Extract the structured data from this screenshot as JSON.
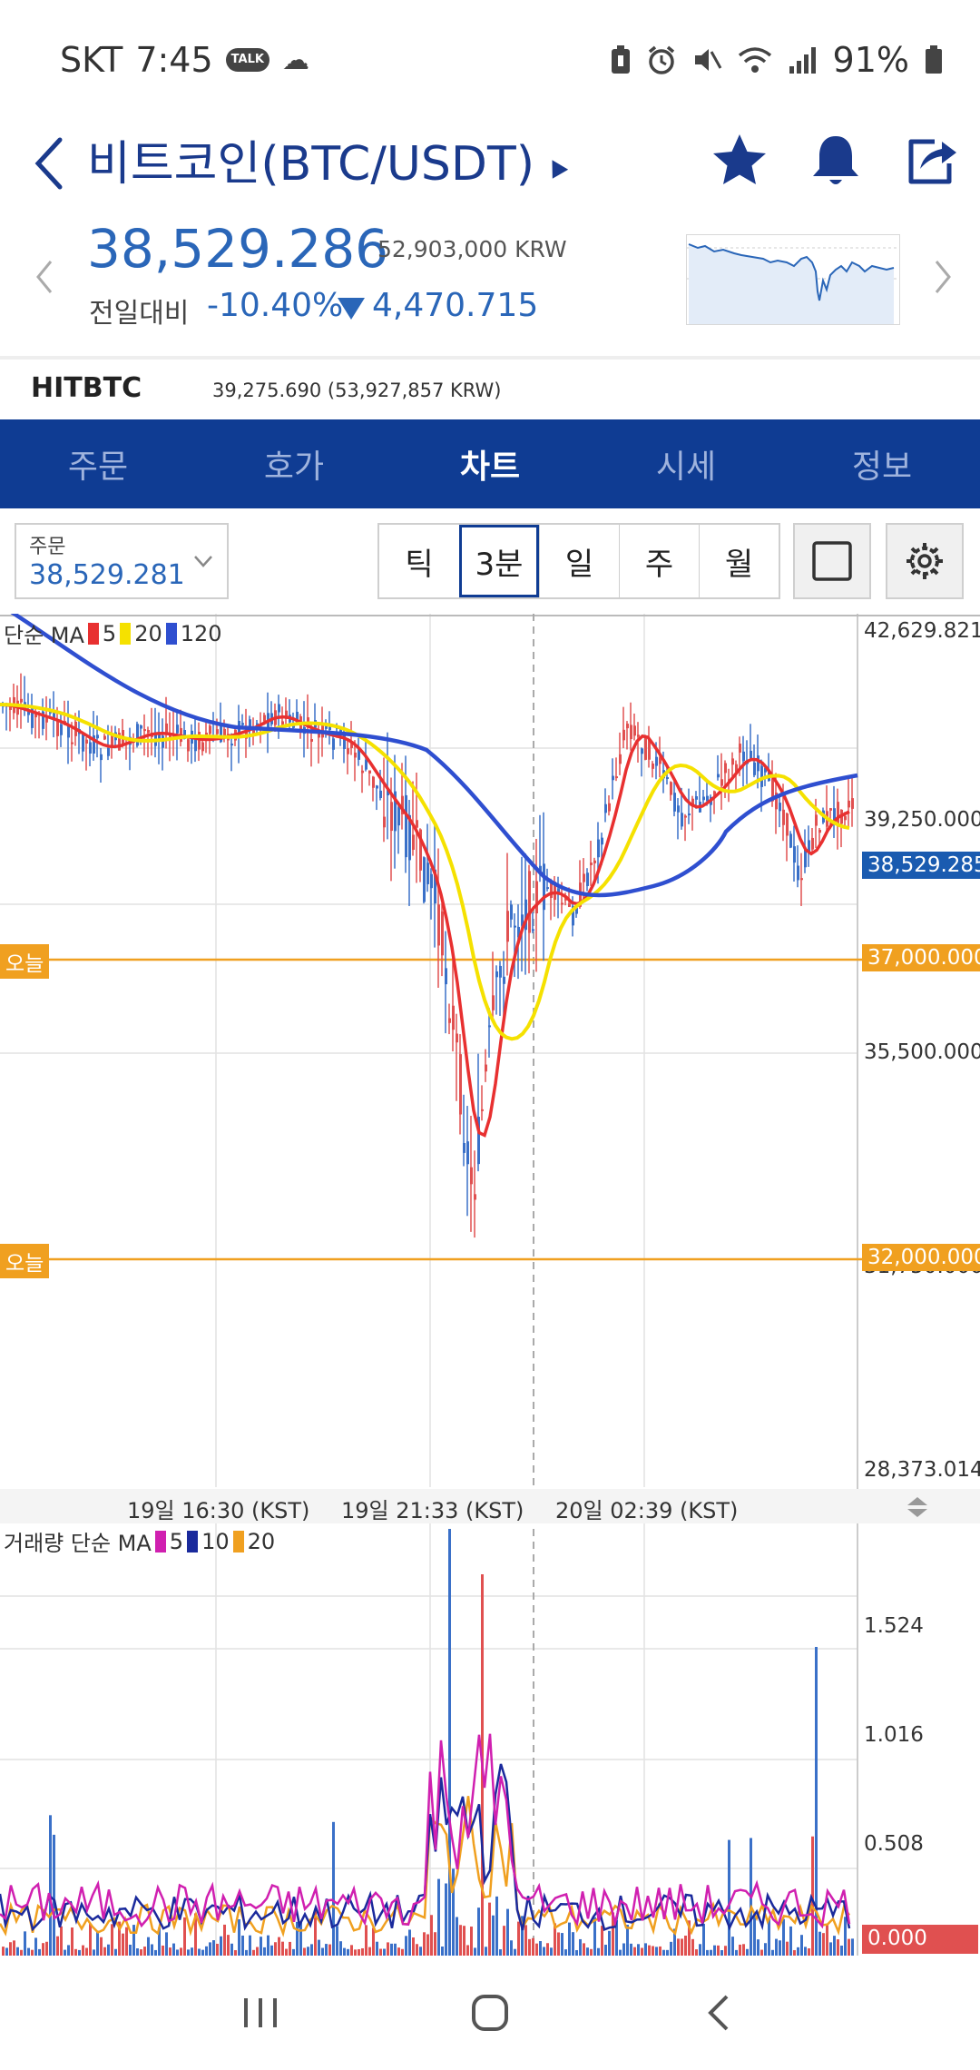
{
  "status_bar": {
    "carrier": "SKT",
    "time": "7:45",
    "talk_badge": "TALK",
    "battery": "91%",
    "icons": [
      "talk-icon",
      "cloud-icon",
      "battery-saver-icon",
      "alarm-icon",
      "mute-icon",
      "wifi-icon",
      "signal-icon",
      "battery-icon"
    ]
  },
  "header": {
    "title": "비트코인(BTC/USDT)",
    "icons": [
      "back-icon",
      "star-icon",
      "bell-icon",
      "share-icon"
    ],
    "accent": "#1a3a8c"
  },
  "price": {
    "current": "38,529.286",
    "krw": "52,903,000 KRW",
    "change_label": "전일대비",
    "change_pct": "-10.40%",
    "change_value": "4,470.715",
    "color_down": "#2a66b8"
  },
  "exchange": {
    "name": "HITBTC",
    "value": "39,275.690 (53,927,857 KRW)"
  },
  "tabs": [
    {
      "label": "주문",
      "active": false
    },
    {
      "label": "호가",
      "active": false
    },
    {
      "label": "차트",
      "active": true
    },
    {
      "label": "시세",
      "active": false
    },
    {
      "label": "정보",
      "active": false
    }
  ],
  "toolbar": {
    "order_label": "주문",
    "order_value": "38,529.281",
    "periods": [
      {
        "label": "틱",
        "active": false
      },
      {
        "label": "3분",
        "active": true
      },
      {
        "label": "일",
        "active": false
      },
      {
        "label": "주",
        "active": false
      },
      {
        "label": "월",
        "active": false
      }
    ]
  },
  "chart": {
    "ma_legend": {
      "label": "단순 MA",
      "items": [
        {
          "text": "5",
          "color": "#e83030"
        },
        {
          "text": "20",
          "color": "#f5e100"
        },
        {
          "text": "120",
          "color": "#2f4fd0"
        }
      ]
    },
    "y_labels": [
      "42,629.821",
      "39,250.000",
      "35,500.000",
      "31,750.000",
      "28,373.014"
    ],
    "current_tag": "38,529.285",
    "today_tags": [
      {
        "label": "오늘",
        "price": "37,000.000"
      },
      {
        "label": "오늘",
        "price": "32,000.000"
      }
    ],
    "time_labels": [
      "19일 16:30 (KST)",
      "19일 21:33 (KST)",
      "20일 02:39 (KST)"
    ],
    "volume_legend": {
      "label": "거래량 단순 MA",
      "items": [
        {
          "text": "5",
          "color": "#d020b0"
        },
        {
          "text": "10",
          "color": "#1a2a9c"
        },
        {
          "text": "20",
          "color": "#f0a020"
        }
      ]
    },
    "volume_labels": [
      "1.524",
      "1.016",
      "0.508",
      "0.000"
    ],
    "colors": {
      "up": "#e05050",
      "down": "#3a70c8",
      "grid": "#e2e2e2",
      "today": "#f0a020",
      "current": "#1a5bb0"
    }
  },
  "bottom_nav": {
    "icons": [
      "recent-apps-icon",
      "home-icon",
      "back-nav-icon"
    ]
  }
}
